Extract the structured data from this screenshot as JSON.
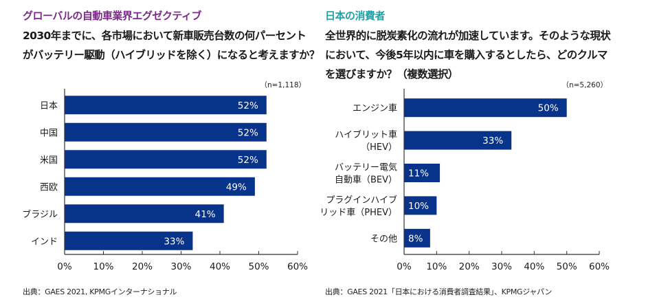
{
  "colors": {
    "bar": "#08338a",
    "left_kicker": "#7b2a8a",
    "right_kicker": "#21a0a6",
    "axis": "#333333",
    "bar_label": "#ffffff"
  },
  "left": {
    "kicker": "グローバルの自動車業界エグゼクティブ",
    "question": "2030年までに、各市場において新車販売台数の何パーセント\nがバッテリー駆動（ハイブリッドを除く）になると考えますか？",
    "source": "出典：GAES 2021, KPMGインターナショナル"
  },
  "right": {
    "kicker": "日本の消費者",
    "question": "全世界的に脱炭素化の流れが加速しています。そのような現状\nにおいて、今後5年以内に車を購入するとしたら、どのクルマ\nを選びますか？（複数選択）",
    "source": "出典：GAES 2021「日本における消費者調査結果」、KPMGジャパン"
  },
  "chart_data": [
    {
      "type": "bar",
      "orientation": "horizontal",
      "title": "グローバルの自動車業界エグゼクティブ",
      "note": "（n=1,118）",
      "categories": [
        "日本",
        "中国",
        "米国",
        "西欧",
        "ブラジル",
        "インド"
      ],
      "values": [
        52,
        52,
        52,
        49,
        41,
        33
      ],
      "value_labels": [
        "52%",
        "52%",
        "52%",
        "49%",
        "41%",
        "33%"
      ],
      "xlabel": "",
      "ylabel": "",
      "xlim": [
        0,
        60
      ],
      "xticks": [
        0,
        10,
        20,
        30,
        40,
        50,
        60
      ],
      "xtick_labels": [
        "0%",
        "10%",
        "20%",
        "30%",
        "40%",
        "50%",
        "60%"
      ],
      "grid": false,
      "legend": "none"
    },
    {
      "type": "bar",
      "orientation": "horizontal",
      "title": "日本の消費者",
      "note": "（n=5,260）",
      "categories": [
        [
          "エンジン車"
        ],
        [
          "ハイブリット車",
          "（HEV）"
        ],
        [
          "バッテリー電気",
          "自動車（BEV）"
        ],
        [
          "プラグインハイブ",
          "リッド車（PHEV）"
        ],
        [
          "その他"
        ]
      ],
      "values": [
        50,
        33,
        11,
        10,
        8
      ],
      "value_labels": [
        "50%",
        "33%",
        "11%",
        "10%",
        "8%"
      ],
      "xlabel": "",
      "ylabel": "",
      "xlim": [
        0,
        60
      ],
      "xticks": [
        0,
        10,
        20,
        30,
        40,
        50,
        60
      ],
      "xtick_labels": [
        "0%",
        "10%",
        "20%",
        "30%",
        "40%",
        "50%",
        "60%"
      ],
      "grid": false,
      "legend": "none"
    }
  ]
}
